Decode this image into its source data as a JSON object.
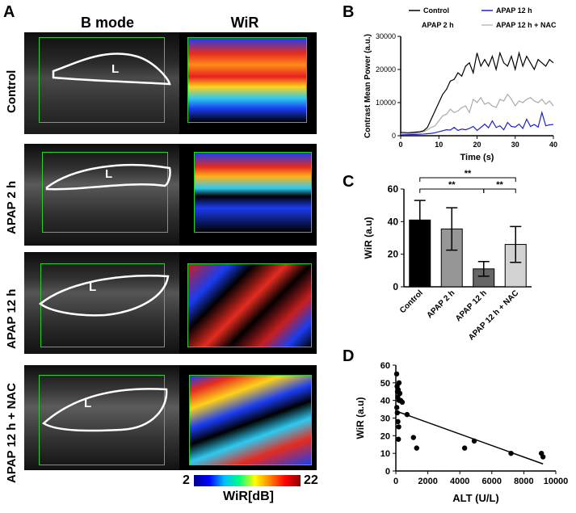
{
  "panel_a": {
    "letter": "A",
    "col_bmode": "B mode",
    "col_wir": "WiR",
    "liver_marker": "L",
    "rows": [
      "Control",
      "APAP 2 h",
      "APAP 12 h",
      "APAP 12 h + NAC"
    ],
    "colorbar": {
      "min": "2",
      "max": "22",
      "label": "WiR[dB]"
    }
  },
  "chart_data": [
    {
      "panel": "B",
      "type": "line",
      "title": "",
      "xlabel": "Time (s)",
      "ylabel": "Contrast Mean Power (a.u.)",
      "xlim": [
        0,
        40
      ],
      "ylim": [
        0,
        30000
      ],
      "xticks": [
        "0",
        "10",
        "20",
        "30",
        "40"
      ],
      "yticks": [
        "0",
        "10000",
        "20000",
        "30000"
      ],
      "series": [
        {
          "name": "Control",
          "color": "#000000",
          "x": [
            0,
            2,
            4,
            5,
            6,
            7,
            8,
            9,
            10,
            11,
            12,
            13,
            14,
            15,
            16,
            17,
            18,
            19,
            20,
            21,
            22,
            23,
            24,
            25,
            26,
            27,
            28,
            29,
            30,
            31,
            32,
            33,
            34,
            35,
            36,
            37,
            38,
            39,
            40
          ],
          "values": [
            1000,
            900,
            1100,
            1200,
            1500,
            2500,
            5000,
            7500,
            10000,
            12500,
            14000,
            16500,
            17000,
            19000,
            18000,
            21000,
            22000,
            19000,
            25000,
            21000,
            23000,
            21000,
            24000,
            20000,
            25000,
            22000,
            21000,
            24000,
            20000,
            25000,
            21000,
            24000,
            22000,
            20000,
            23000,
            22000,
            21000,
            23000,
            22000
          ]
        },
        {
          "name": "APAP 2 h",
          "color": "#aaaaaa",
          "x": [
            0,
            2,
            4,
            6,
            7,
            8,
            9,
            10,
            11,
            12,
            13,
            14,
            15,
            16,
            17,
            18,
            19,
            20,
            21,
            22,
            23,
            24,
            25,
            26,
            27,
            28,
            29,
            30,
            31,
            32,
            33,
            34,
            35,
            36,
            37,
            38,
            39,
            40
          ],
          "values": [
            500,
            600,
            800,
            1200,
            1800,
            2500,
            3000,
            4500,
            6000,
            6500,
            8000,
            7000,
            7500,
            8500,
            9000,
            7000,
            11000,
            10000,
            11500,
            9500,
            10000,
            9000,
            8500,
            11000,
            10500,
            12500,
            11000,
            9000,
            10500,
            10000,
            11000,
            11500,
            10500,
            10000,
            11000,
            9500,
            10500,
            9000
          ]
        },
        {
          "name": "APAP 12 h",
          "color": "#1c22c9",
          "x": [
            0,
            2,
            4,
            6,
            8,
            9,
            10,
            11,
            12,
            13,
            14,
            15,
            16,
            17,
            18,
            19,
            20,
            21,
            22,
            23,
            24,
            25,
            26,
            27,
            28,
            29,
            30,
            31,
            32,
            33,
            34,
            35,
            36,
            37,
            38,
            39,
            40
          ],
          "values": [
            300,
            350,
            400,
            500,
            700,
            900,
            1200,
            1500,
            1800,
            1700,
            2500,
            1600,
            2000,
            1800,
            2200,
            2800,
            1600,
            2500,
            3500,
            2400,
            4500,
            2500,
            3000,
            1800,
            4000,
            2800,
            2600,
            3500,
            2200,
            5000,
            2800,
            3400,
            2600,
            7000,
            3000,
            3300,
            3400
          ]
        },
        {
          "name": "APAP 12 h + NAC",
          "color": "#bbbbbb",
          "x": [],
          "values": []
        }
      ]
    },
    {
      "panel": "C",
      "type": "bar",
      "title": "",
      "xlabel": "",
      "ylabel": "WiR (a.u)",
      "ylim": [
        0,
        60
      ],
      "yticks": [
        "0",
        "20",
        "40",
        "60"
      ],
      "categories": [
        "Control",
        "APAP 2 h",
        "APAP 12 h",
        "APAP 12 h + NAC"
      ],
      "values": [
        41,
        35.5,
        11,
        26
      ],
      "errors": [
        12,
        13,
        4.5,
        11
      ],
      "bar_colors": [
        "#000000",
        "#969696",
        "#666666",
        "#d2d2d2"
      ],
      "significance": [
        {
          "from": 0,
          "to": 3,
          "label": "**"
        },
        {
          "from": 0,
          "to": 2,
          "label": "**"
        },
        {
          "from": 2,
          "to": 3,
          "label": "**"
        }
      ]
    },
    {
      "panel": "D",
      "type": "scatter",
      "title": "",
      "xlabel": "ALT (U/L)",
      "ylabel": "WiR (a.u)",
      "xlim": [
        0,
        10000
      ],
      "ylim": [
        0,
        60
      ],
      "xticks": [
        "0",
        "2000",
        "4000",
        "6000",
        "8000",
        "10000"
      ],
      "yticks": [
        "0",
        "10",
        "20",
        "30",
        "40",
        "50",
        "60"
      ],
      "x": [
        50,
        80,
        100,
        120,
        150,
        200,
        250,
        300,
        60,
        90,
        130,
        180,
        160,
        700,
        1100,
        1300,
        4300,
        4900,
        7200,
        9100,
        9200,
        200,
        400
      ],
      "y": [
        55,
        48,
        45,
        42,
        46,
        50,
        44,
        40,
        36,
        33,
        28,
        25,
        18,
        32,
        19,
        13,
        13,
        17,
        10,
        10,
        8,
        40,
        39
      ],
      "trendline": {
        "x": [
          0,
          9200
        ],
        "y": [
          34,
          4
        ]
      }
    }
  ],
  "legend": [
    "Control",
    "APAP 2 h",
    "APAP 12 h",
    "APAP 12 h + NAC"
  ],
  "panel_letters": {
    "b": "B",
    "c": "C",
    "d": "D"
  },
  "colors": {
    "roi_box": "#2bd12b",
    "contour": "#ffffff"
  }
}
